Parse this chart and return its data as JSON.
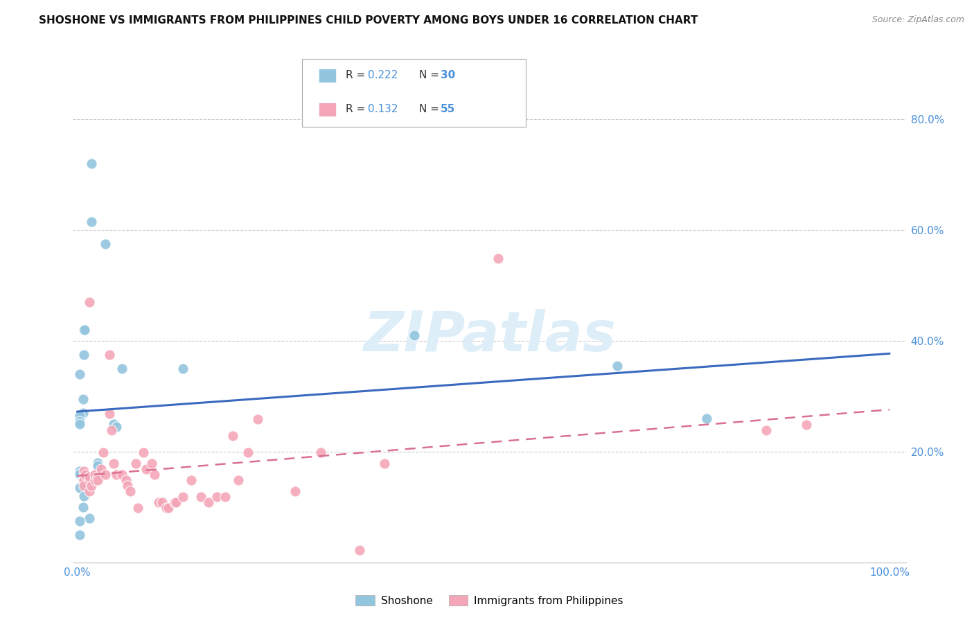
{
  "title": "SHOSHONE VS IMMIGRANTS FROM PHILIPPINES CHILD POVERTY AMONG BOYS UNDER 16 CORRELATION CHART",
  "source": "Source: ZipAtlas.com",
  "ylim": [
    0.0,
    0.87
  ],
  "xlim": [
    -0.005,
    1.02
  ],
  "right_yticks": [
    0.2,
    0.4,
    0.6,
    0.8
  ],
  "right_ytick_labels": [
    "20.0%",
    "40.0%",
    "60.0%",
    "80.0%"
  ],
  "x_tick_vals": [
    0.0,
    1.0
  ],
  "x_tick_labels": [
    "0.0%",
    "100.0%"
  ],
  "shoshone_color": "#92c5de",
  "philippines_color": "#f4a6b8",
  "trend_blue": "#3a6abf",
  "trend_pink": "#d97090",
  "watermark_color": "#ddeef8",
  "shoshone_x": [
    0.018,
    0.035,
    0.018,
    0.008,
    0.009,
    0.008,
    0.003,
    0.007,
    0.007,
    0.003,
    0.003,
    0.003,
    0.045,
    0.048,
    0.13,
    0.025,
    0.025,
    0.003,
    0.003,
    0.007,
    0.003,
    0.055,
    0.415,
    0.665,
    0.775,
    0.008,
    0.007,
    0.015,
    0.003,
    0.003
  ],
  "shoshone_y": [
    0.72,
    0.575,
    0.615,
    0.42,
    0.42,
    0.375,
    0.34,
    0.295,
    0.27,
    0.265,
    0.255,
    0.25,
    0.25,
    0.245,
    0.35,
    0.18,
    0.175,
    0.165,
    0.16,
    0.15,
    0.135,
    0.35,
    0.41,
    0.355,
    0.26,
    0.12,
    0.1,
    0.08,
    0.075,
    0.05
  ],
  "philippines_x": [
    0.008,
    0.008,
    0.008,
    0.008,
    0.01,
    0.015,
    0.015,
    0.015,
    0.015,
    0.018,
    0.022,
    0.022,
    0.025,
    0.025,
    0.03,
    0.032,
    0.035,
    0.04,
    0.04,
    0.042,
    0.045,
    0.048,
    0.055,
    0.06,
    0.062,
    0.065,
    0.072,
    0.075,
    0.082,
    0.085,
    0.092,
    0.095,
    0.1,
    0.105,
    0.11,
    0.112,
    0.12,
    0.122,
    0.13,
    0.14,
    0.152,
    0.162,
    0.172,
    0.182,
    0.192,
    0.198,
    0.21,
    0.222,
    0.268,
    0.3,
    0.348,
    0.378,
    0.518,
    0.848,
    0.898
  ],
  "philippines_y": [
    0.155,
    0.165,
    0.148,
    0.138,
    0.158,
    0.47,
    0.148,
    0.155,
    0.128,
    0.138,
    0.148,
    0.158,
    0.155,
    0.148,
    0.168,
    0.198,
    0.158,
    0.375,
    0.268,
    0.238,
    0.178,
    0.158,
    0.158,
    0.148,
    0.138,
    0.128,
    0.178,
    0.098,
    0.198,
    0.168,
    0.178,
    0.158,
    0.108,
    0.108,
    0.098,
    0.098,
    0.108,
    0.108,
    0.118,
    0.148,
    0.118,
    0.108,
    0.118,
    0.118,
    0.228,
    0.148,
    0.198,
    0.258,
    0.128,
    0.198,
    0.022,
    0.178,
    0.548,
    0.238,
    0.248
  ]
}
